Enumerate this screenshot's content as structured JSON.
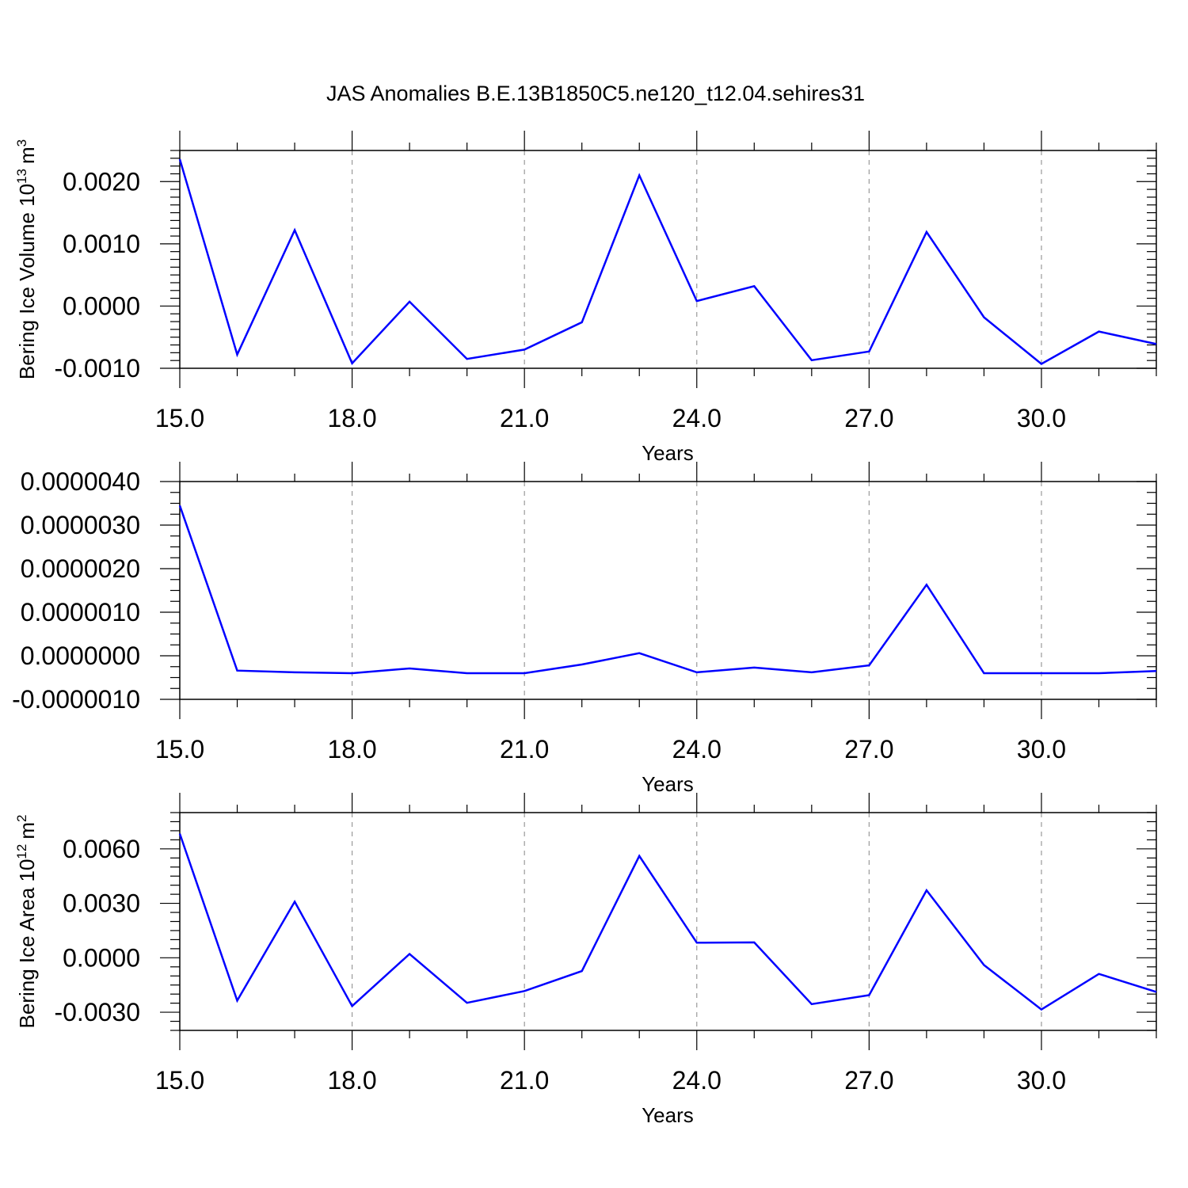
{
  "title": "JAS Anomalies B.E.13B1850C5.ne120_t12.04.sehires31",
  "colors": {
    "line": "#0000ff",
    "axes": "#000000",
    "grid": "#999999"
  },
  "chart_data": [
    {
      "type": "line",
      "ylabel": "Bering Ice Volume 10",
      "ylabel_sup": "13",
      "ylabel_unit": "m",
      "ylabel_unit_sup": "3",
      "xlabel": "Years",
      "xlim": [
        15,
        32
      ],
      "ylim": [
        -0.001,
        0.0025
      ],
      "xticks": [
        15,
        18,
        21,
        24,
        27,
        30
      ],
      "xtick_labels": [
        "15.0",
        "18.0",
        "21.0",
        "24.0",
        "27.0",
        "30.0"
      ],
      "yticks": [
        -0.001,
        0.0,
        0.001,
        0.002
      ],
      "ytick_labels": [
        "-0.0010",
        "0.0000",
        "0.0010",
        "0.0020"
      ],
      "grid": "vertical dashed at major x ticks",
      "x": [
        15,
        16,
        17,
        18,
        19,
        20,
        21,
        22,
        23,
        24,
        25,
        26,
        27,
        28,
        29,
        30,
        31,
        32
      ],
      "y": [
        0.00236,
        -0.00078,
        0.00122,
        -0.00092,
        7e-05,
        -0.00085,
        -0.0007,
        -0.00026,
        0.0021,
        8e-05,
        0.00032,
        -0.00087,
        -0.00073,
        0.00119,
        -0.00018,
        -0.00093,
        -0.00041,
        -0.00061
      ]
    },
    {
      "type": "line",
      "ylabel": "",
      "xlabel": "Years",
      "xlim": [
        15,
        32
      ],
      "ylim": [
        -1e-06,
        4e-06
      ],
      "xticks": [
        15,
        18,
        21,
        24,
        27,
        30
      ],
      "xtick_labels": [
        "15.0",
        "18.0",
        "21.0",
        "24.0",
        "27.0",
        "30.0"
      ],
      "yticks": [
        -1e-06,
        0.0,
        1e-06,
        2e-06,
        3e-06,
        4e-06
      ],
      "ytick_labels": [
        "-0.0000010",
        "0.0000000",
        "0.0000010",
        "0.0000020",
        "0.0000030",
        "0.0000040"
      ],
      "grid": "vertical dashed at major x ticks",
      "x": [
        15,
        16,
        17,
        18,
        19,
        20,
        21,
        22,
        23,
        24,
        25,
        26,
        27,
        28,
        29,
        30,
        31,
        32
      ],
      "y": [
        3.45e-06,
        -3.4e-07,
        -3.8e-07,
        -4e-07,
        -2.9e-07,
        -4e-07,
        -4e-07,
        -2e-07,
        6e-08,
        -3.8e-07,
        -2.7e-07,
        -3.8e-07,
        -2.2e-07,
        1.63e-06,
        -4e-07,
        -4e-07,
        -4e-07,
        -3.5e-07
      ]
    },
    {
      "type": "line",
      "ylabel": "Bering Ice Area 10",
      "ylabel_sup": "12",
      "ylabel_unit": "m",
      "ylabel_unit_sup": "2",
      "xlabel": "Years",
      "xlim": [
        15,
        32
      ],
      "ylim": [
        -0.004,
        0.008
      ],
      "xticks": [
        15,
        18,
        21,
        24,
        27,
        30
      ],
      "xtick_labels": [
        "15.0",
        "18.0",
        "21.0",
        "24.0",
        "27.0",
        "30.0"
      ],
      "yticks": [
        -0.003,
        0.0,
        0.003,
        0.006
      ],
      "ytick_labels": [
        "-0.0030",
        "0.0000",
        "0.0030",
        "0.0060"
      ],
      "grid": "vertical dashed at major x ticks",
      "x": [
        15,
        16,
        17,
        18,
        19,
        20,
        21,
        22,
        23,
        24,
        25,
        26,
        27,
        28,
        29,
        30,
        31,
        32
      ],
      "y": [
        0.00684,
        -0.00236,
        0.00309,
        -0.00266,
        0.00021,
        -0.00248,
        -0.00183,
        -0.00073,
        0.00561,
        0.00083,
        0.00085,
        -0.00255,
        -0.00206,
        0.00372,
        -0.0004,
        -0.00285,
        -0.00089,
        -0.00188
      ]
    }
  ]
}
